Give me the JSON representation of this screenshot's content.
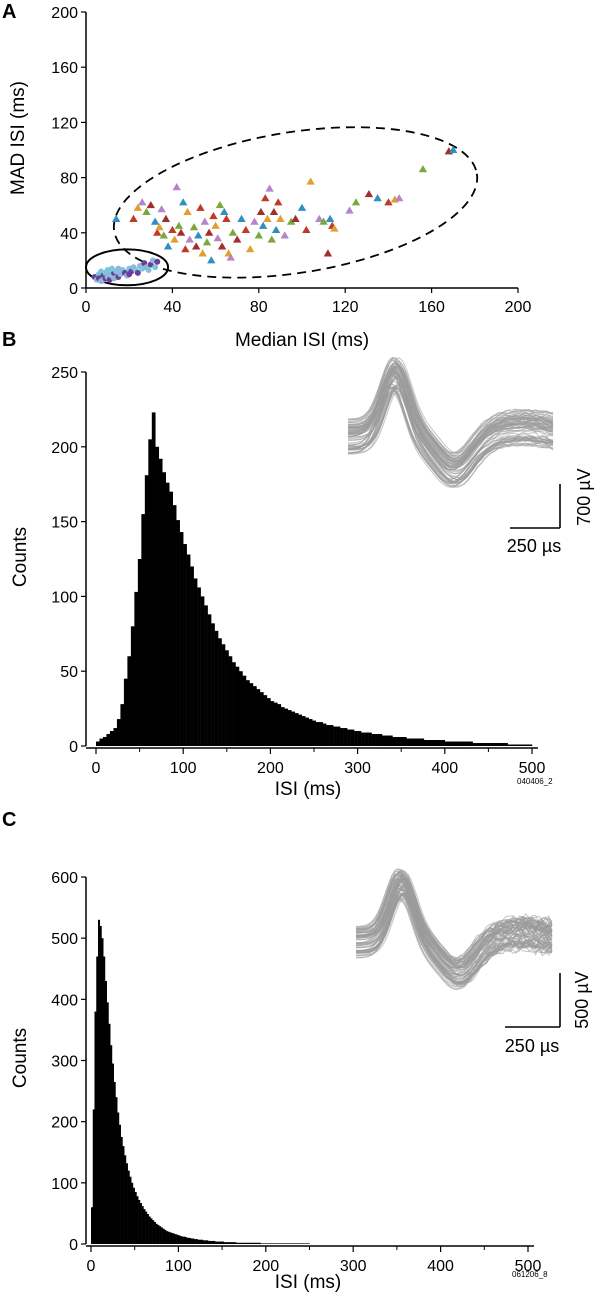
{
  "panels": [
    {
      "id": "A",
      "label": "A"
    },
    {
      "id": "B",
      "label": "B"
    },
    {
      "id": "C",
      "label": "C"
    }
  ],
  "scale_bars": {
    "B": {
      "voltage": "700 µV",
      "time": "250 µs"
    },
    "C": {
      "voltage": "500 µV",
      "time": "250 µs"
    }
  },
  "recording_ids": {
    "B": "040406_2",
    "C": "061206_8"
  },
  "colors": {
    "axis": "#000000",
    "bars": "#000000",
    "waveform": "#9a9a9a",
    "cluster_circles": [
      "#6b3fa0",
      "#8fb8d8",
      "#7fc4d9"
    ],
    "cluster_triangles": [
      "#2e8fc0",
      "#c0392b",
      "#e0a030",
      "#b784c8",
      "#7aa840",
      "#a0302a"
    ]
  },
  "chart_data": [
    {
      "type": "scatter",
      "panel": "A",
      "xlabel": "Median ISI (ms)",
      "ylabel": "MAD ISI (ms)",
      "xlim": [
        0,
        200
      ],
      "ylim": [
        0,
        200
      ],
      "xticks": [
        0,
        40,
        80,
        120,
        160,
        200
      ],
      "yticks": [
        0,
        40,
        80,
        120,
        160,
        200
      ],
      "grid": false,
      "enclosures": [
        {
          "shape": "ellipse",
          "style": "solid",
          "center": [
            19,
            15
          ],
          "radii": [
            19,
            13
          ]
        },
        {
          "shape": "ellipse",
          "style": "dashed",
          "center": [
            97,
            62
          ],
          "radii": [
            85,
            51
          ],
          "rotation_deg": 9
        }
      ],
      "series": [
        {
          "marker": "circle",
          "points": [
            [
              4,
              8
            ],
            [
              5,
              6
            ],
            [
              6,
              10
            ],
            [
              6,
              7
            ],
            [
              7,
              5
            ],
            [
              7,
              12
            ],
            [
              8,
              9
            ],
            [
              8,
              6
            ],
            [
              9,
              11
            ],
            [
              9,
              7
            ],
            [
              10,
              8
            ],
            [
              10,
              13
            ],
            [
              11,
              6
            ],
            [
              11,
              10
            ],
            [
              12,
              9
            ],
            [
              13,
              11
            ],
            [
              13,
              7
            ],
            [
              14,
              12
            ],
            [
              15,
              8
            ],
            [
              16,
              10
            ],
            [
              17,
              13
            ],
            [
              18,
              11
            ],
            [
              19,
              9
            ],
            [
              20,
              14
            ],
            [
              21,
              12
            ],
            [
              22,
              15
            ],
            [
              23,
              13
            ],
            [
              24,
              11
            ],
            [
              25,
              16
            ],
            [
              26,
              14
            ],
            [
              27,
              18
            ],
            [
              28,
              15
            ],
            [
              29,
              13
            ],
            [
              30,
              17
            ],
            [
              31,
              20
            ],
            [
              32,
              15
            ],
            [
              33,
              19
            ],
            [
              15,
              14
            ],
            [
              12,
              14
            ],
            [
              20,
              10
            ]
          ]
        },
        {
          "marker": "triangle",
          "points": [
            [
              14,
              50
            ],
            [
              22,
              50
            ],
            [
              24,
              58
            ],
            [
              26,
              62
            ],
            [
              28,
              55
            ],
            [
              30,
              60
            ],
            [
              32,
              48
            ],
            [
              33,
              40
            ],
            [
              34,
              44
            ],
            [
              35,
              57
            ],
            [
              36,
              38
            ],
            [
              37,
              50
            ],
            [
              38,
              30
            ],
            [
              40,
              42
            ],
            [
              41,
              35
            ],
            [
              42,
              73
            ],
            [
              43,
              45
            ],
            [
              44,
              40
            ],
            [
              45,
              62
            ],
            [
              46,
              28
            ],
            [
              47,
              55
            ],
            [
              48,
              35
            ],
            [
              50,
              44
            ],
            [
              51,
              30
            ],
            [
              52,
              38
            ],
            [
              53,
              58
            ],
            [
              54,
              25
            ],
            [
              55,
              48
            ],
            [
              56,
              33
            ],
            [
              57,
              40
            ],
            [
              58,
              20
            ],
            [
              59,
              52
            ],
            [
              60,
              45
            ],
            [
              61,
              36
            ],
            [
              62,
              60
            ],
            [
              63,
              30
            ],
            [
              64,
              55
            ],
            [
              65,
              50
            ],
            [
              66,
              25
            ],
            [
              67,
              22
            ],
            [
              68,
              40
            ],
            [
              70,
              35
            ],
            [
              72,
              50
            ],
            [
              74,
              42
            ],
            [
              76,
              28
            ],
            [
              78,
              48
            ],
            [
              80,
              38
            ],
            [
              81,
              55
            ],
            [
              82,
              45
            ],
            [
              83,
              65
            ],
            [
              84,
              50
            ],
            [
              85,
              72
            ],
            [
              86,
              35
            ],
            [
              87,
              55
            ],
            [
              88,
              42
            ],
            [
              89,
              62
            ],
            [
              90,
              50
            ],
            [
              92,
              38
            ],
            [
              95,
              48
            ],
            [
              97,
              50
            ],
            [
              100,
              58
            ],
            [
              102,
              42
            ],
            [
              104,
              77
            ],
            [
              108,
              50
            ],
            [
              110,
              48
            ],
            [
              112,
              25
            ],
            [
              113,
              50
            ],
            [
              114,
              45
            ],
            [
              115,
              43
            ],
            [
              122,
              56
            ],
            [
              125,
              62
            ],
            [
              131,
              68
            ],
            [
              135,
              65
            ],
            [
              140,
              62
            ],
            [
              143,
              64
            ],
            [
              145,
              65
            ],
            [
              156,
              86
            ],
            [
              168,
              99
            ],
            [
              170,
              100
            ]
          ]
        }
      ]
    },
    {
      "type": "bar",
      "panel": "B",
      "xlabel": "ISI (ms)",
      "ylabel": "Counts",
      "xlim": [
        0,
        500
      ],
      "ylim": [
        0,
        250
      ],
      "xticks": [
        0,
        100,
        200,
        300,
        400,
        500
      ],
      "yticks": [
        0,
        50,
        100,
        150,
        200,
        250
      ],
      "bin_width": 4,
      "values": [
        3,
        5,
        6,
        8,
        10,
        12,
        18,
        28,
        45,
        60,
        80,
        103,
        125,
        155,
        181,
        205,
        223,
        200,
        192,
        183,
        176,
        170,
        161,
        151,
        143,
        135,
        128,
        120,
        112,
        106,
        100,
        94,
        88,
        82,
        77,
        72,
        68,
        64,
        60,
        56,
        53,
        50,
        47,
        44,
        42,
        40,
        38,
        36,
        34,
        32,
        30,
        29,
        28,
        26,
        25,
        24,
        23,
        22,
        21,
        20,
        19,
        18,
        17,
        16,
        16,
        15,
        14,
        14,
        13,
        13,
        12,
        12,
        11,
        11,
        10,
        10,
        9,
        9,
        9,
        8,
        8,
        8,
        7,
        7,
        7,
        6,
        6,
        6,
        6,
        5,
        5,
        5,
        5,
        5,
        4,
        4,
        4,
        4,
        4,
        4,
        3,
        3,
        3,
        3,
        3,
        3,
        3,
        3,
        2,
        2,
        2,
        2,
        2,
        2,
        2,
        2,
        2,
        2,
        1,
        1,
        1,
        1,
        1,
        1,
        1
      ]
    },
    {
      "type": "bar",
      "panel": "C",
      "xlabel": "ISI (ms)",
      "ylabel": "Counts",
      "xlim": [
        0,
        500
      ],
      "ylim": [
        0,
        600
      ],
      "xticks": [
        0,
        100,
        200,
        300,
        400,
        500
      ],
      "yticks": [
        0,
        100,
        200,
        300,
        400,
        500,
        600
      ],
      "bin_width": 2,
      "values": [
        60,
        220,
        380,
        470,
        530,
        520,
        500,
        470,
        430,
        395,
        360,
        325,
        295,
        265,
        240,
        215,
        195,
        175,
        160,
        145,
        132,
        120,
        110,
        100,
        92,
        85,
        78,
        72,
        67,
        62,
        57,
        53,
        49,
        45,
        42,
        39,
        36,
        33,
        31,
        29,
        27,
        25,
        23,
        21,
        20,
        19,
        18,
        17,
        16,
        15,
        14,
        13,
        12,
        12,
        11,
        10,
        10,
        9,
        9,
        8,
        8,
        7,
        7,
        7,
        6,
        6,
        6,
        5,
        5,
        5,
        5,
        4,
        4,
        4,
        4,
        4,
        3,
        3,
        3,
        3,
        3,
        3,
        3,
        2,
        2,
        2,
        2,
        2,
        2,
        2,
        2,
        2,
        2,
        2,
        2,
        2,
        2,
        1,
        1,
        1,
        1,
        1,
        1,
        1,
        1,
        1,
        1,
        1,
        1,
        1,
        1,
        1,
        1,
        1,
        1,
        1,
        1,
        1,
        1,
        1,
        1,
        1,
        1,
        1,
        1
      ]
    }
  ]
}
